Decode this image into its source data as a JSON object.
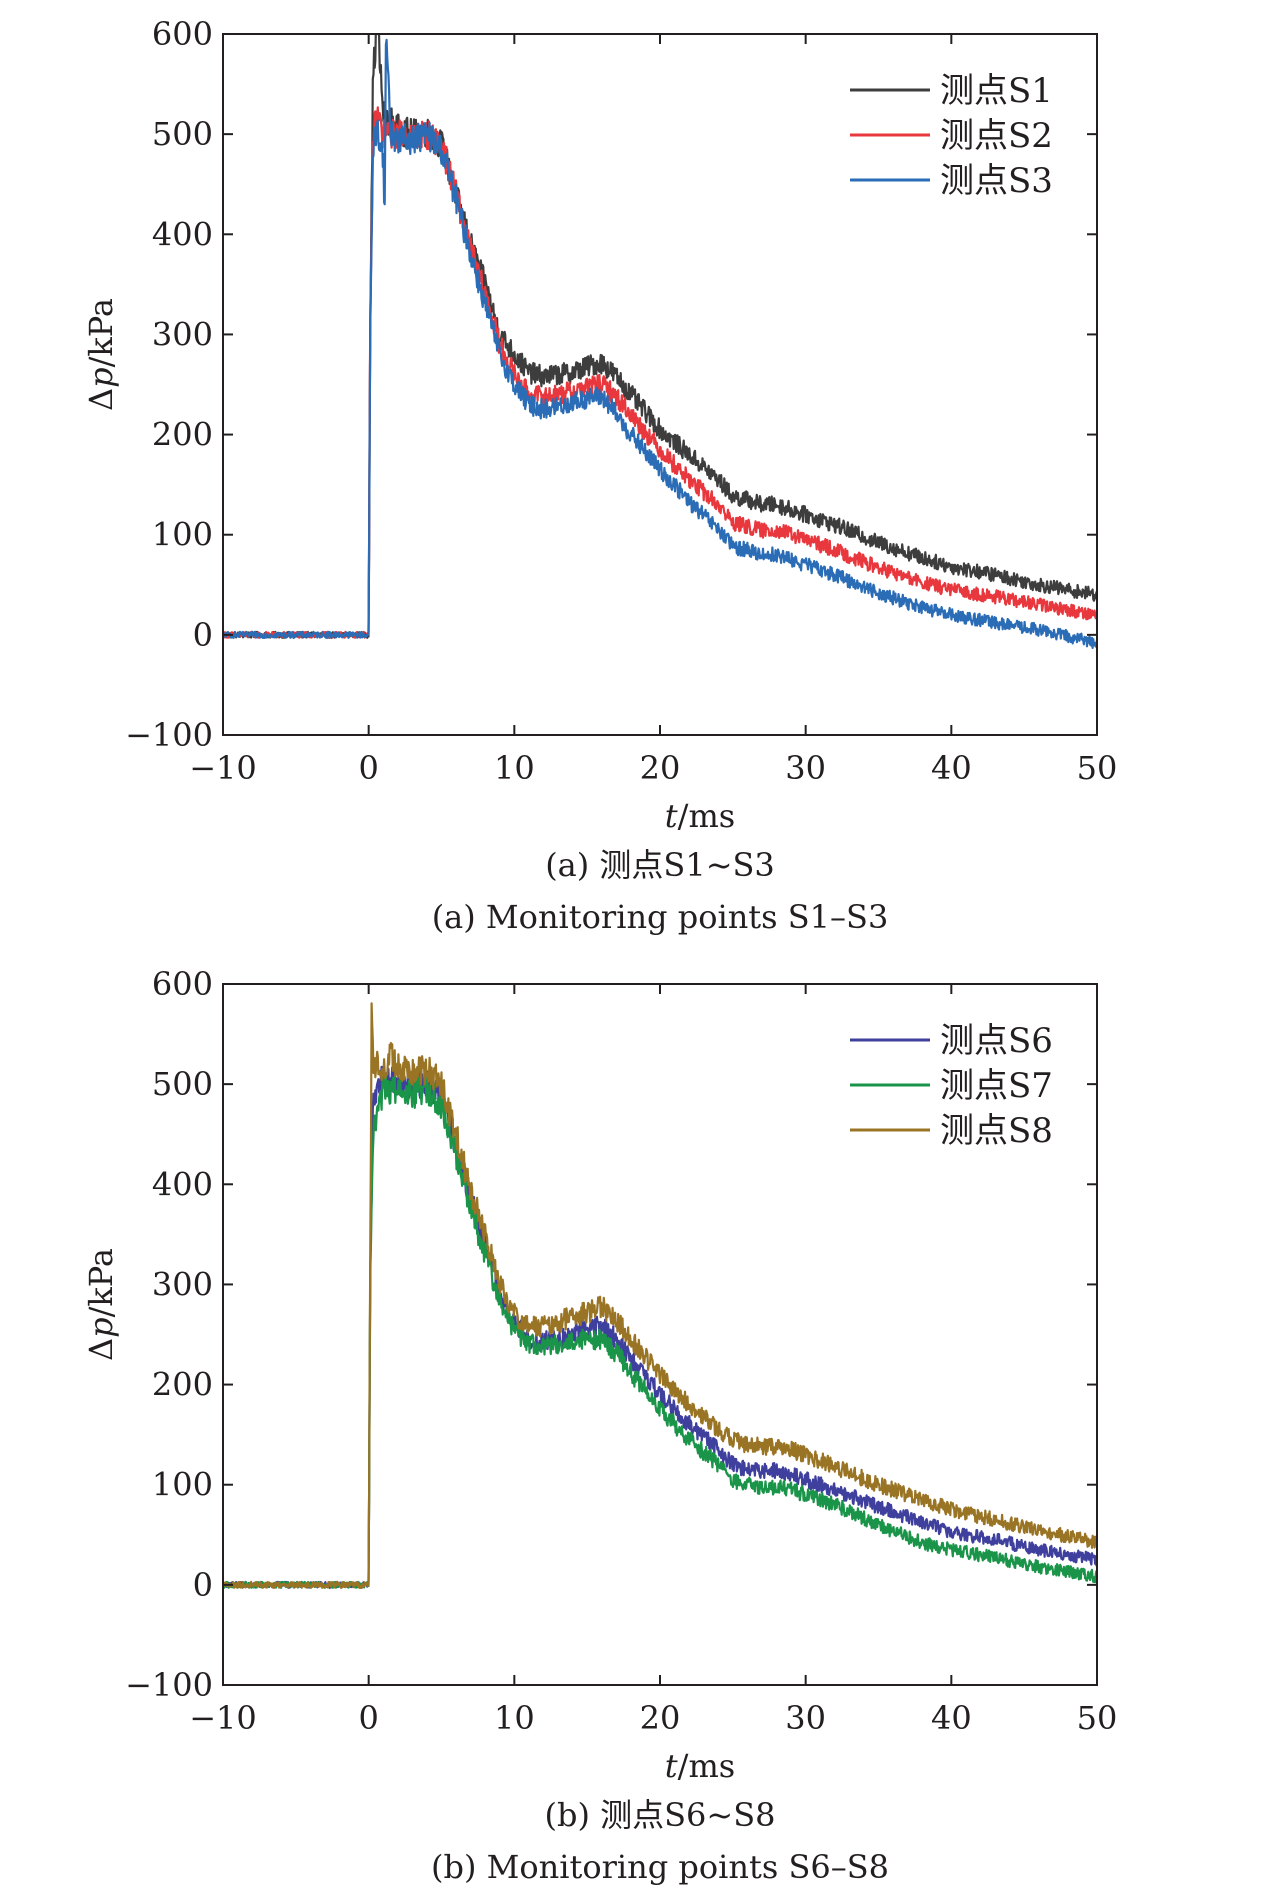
{
  "chart_data": [
    {
      "type": "line",
      "caption_cn": "(a) 测点S1~S3",
      "caption_en": "(a) Monitoring points S1–S3",
      "xlabel_var": "t",
      "xlabel_unit": "/ms",
      "ylabel_var": "Δp",
      "ylabel_unit": "/kPa",
      "xlim": [
        -10,
        50
      ],
      "ylim": [
        -100,
        600
      ],
      "xticks": [
        -10,
        0,
        10,
        20,
        30,
        40,
        50
      ],
      "yticks": [
        -100,
        0,
        100,
        200,
        300,
        400,
        500,
        600
      ],
      "xtick_labels": [
        "−10",
        "0",
        "10",
        "20",
        "30",
        "40",
        "50"
      ],
      "ytick_labels": [
        "−100",
        "0",
        "100",
        "200",
        "300",
        "400",
        "500",
        "600"
      ],
      "grid": false,
      "legend_position": "top-right",
      "series": [
        {
          "name": "测点S1",
          "color": "#3d3d3d",
          "x": [
            -10,
            -5,
            0,
            0.1,
            0.3,
            0.6,
            1,
            2,
            3,
            4,
            5,
            6,
            7,
            8,
            9,
            10,
            11,
            12,
            13,
            14,
            15,
            16,
            17,
            18,
            20,
            22,
            24,
            25,
            26,
            27,
            28,
            29,
            30,
            32,
            35,
            38,
            40,
            43,
            46,
            50
          ],
          "y": [
            0,
            0,
            0,
            300,
            560,
            610,
            520,
            505,
            500,
            502,
            490,
            440,
            390,
            350,
            300,
            280,
            262,
            258,
            260,
            262,
            268,
            272,
            258,
            240,
            205,
            180,
            155,
            138,
            135,
            130,
            130,
            125,
            120,
            110,
            92,
            77,
            68,
            60,
            50,
            40
          ]
        },
        {
          "name": "测点S2",
          "color": "#e8373d",
          "x": [
            -10,
            -5,
            0,
            0.1,
            0.3,
            0.6,
            1,
            2,
            3,
            4,
            5,
            6,
            7,
            8,
            9,
            10,
            11,
            12,
            13,
            14,
            15,
            16,
            17,
            18,
            20,
            22,
            24,
            25,
            26,
            27,
            28,
            29,
            30,
            32,
            35,
            38,
            40,
            43,
            46,
            50
          ],
          "y": [
            0,
            0,
            0,
            300,
            500,
            520,
            500,
            500,
            498,
            500,
            490,
            440,
            385,
            340,
            290,
            260,
            240,
            238,
            240,
            243,
            248,
            250,
            238,
            220,
            185,
            155,
            130,
            112,
            108,
            104,
            105,
            100,
            95,
            85,
            67,
            52,
            45,
            38,
            30,
            20
          ]
        },
        {
          "name": "测点S3",
          "color": "#2a6cb5",
          "x": [
            -10,
            -5,
            0,
            0.1,
            0.3,
            0.6,
            1,
            1.1,
            1.2,
            1.5,
            2,
            3,
            4,
            5,
            6,
            7,
            8,
            9,
            10,
            11,
            12,
            13,
            14,
            15,
            16,
            17,
            18,
            20,
            22,
            24,
            25,
            26,
            27,
            28,
            29,
            30,
            32,
            35,
            38,
            40,
            43,
            46,
            50
          ],
          "y": [
            0,
            0,
            0,
            300,
            490,
            505,
            480,
            420,
            610,
            500,
            495,
            495,
            500,
            485,
            435,
            380,
            330,
            280,
            250,
            230,
            225,
            228,
            232,
            236,
            238,
            220,
            200,
            165,
            133,
            105,
            88,
            85,
            80,
            80,
            75,
            70,
            60,
            42,
            27,
            20,
            12,
            5,
            -8
          ]
        }
      ]
    },
    {
      "type": "line",
      "caption_cn": "(b) 测点S6~S8",
      "caption_en": "(b) Monitoring points S6–S8",
      "xlabel_var": "t",
      "xlabel_unit": "/ms",
      "ylabel_var": "Δp",
      "ylabel_unit": "/kPa",
      "xlim": [
        -10,
        50
      ],
      "ylim": [
        -100,
        600
      ],
      "xticks": [
        -10,
        0,
        10,
        20,
        30,
        40,
        50
      ],
      "yticks": [
        -100,
        0,
        100,
        200,
        300,
        400,
        500,
        600
      ],
      "xtick_labels": [
        "−10",
        "0",
        "10",
        "20",
        "30",
        "40",
        "50"
      ],
      "ytick_labels": [
        "−100",
        "0",
        "100",
        "200",
        "300",
        "400",
        "500",
        "600"
      ],
      "grid": false,
      "legend_position": "top-right",
      "series": [
        {
          "name": "测点S6",
          "color": "#3f3f9e",
          "x": [
            -10,
            -5,
            0,
            0.1,
            0.3,
            1,
            2,
            3,
            4,
            5,
            6,
            7,
            8,
            9,
            10,
            11,
            12,
            13,
            14,
            15,
            16,
            17,
            18,
            20,
            22,
            24,
            25,
            26,
            27,
            28,
            29,
            30,
            32,
            35,
            38,
            40,
            43,
            46,
            50
          ],
          "y": [
            0,
            0,
            0,
            300,
            490,
            505,
            500,
            498,
            500,
            490,
            440,
            385,
            340,
            290,
            260,
            245,
            243,
            245,
            250,
            255,
            258,
            245,
            225,
            190,
            160,
            135,
            120,
            115,
            113,
            115,
            110,
            105,
            95,
            78,
            62,
            53,
            45,
            35,
            25
          ]
        },
        {
          "name": "测点S7",
          "color": "#1a9448",
          "x": [
            -10,
            -5,
            0,
            0.1,
            0.3,
            1,
            2,
            3,
            4,
            5,
            6,
            7,
            8,
            9,
            10,
            11,
            12,
            13,
            14,
            15,
            16,
            17,
            18,
            20,
            22,
            24,
            25,
            26,
            27,
            28,
            29,
            30,
            32,
            35,
            38,
            40,
            43,
            46,
            50
          ],
          "y": [
            0,
            0,
            0,
            300,
            450,
            495,
            495,
            490,
            495,
            480,
            430,
            375,
            330,
            280,
            255,
            240,
            238,
            240,
            243,
            245,
            245,
            232,
            212,
            175,
            145,
            120,
            105,
            100,
            97,
            98,
            95,
            90,
            80,
            60,
            42,
            35,
            27,
            18,
            8
          ]
        },
        {
          "name": "测点S8",
          "color": "#9a7425",
          "x": [
            -10,
            -5,
            0,
            0.1,
            0.2,
            0.3,
            1,
            1.5,
            2,
            3,
            4,
            5,
            6,
            7,
            8,
            9,
            10,
            11,
            12,
            13,
            14,
            15,
            16,
            17,
            18,
            20,
            22,
            24,
            25,
            26,
            27,
            28,
            29,
            30,
            32,
            35,
            38,
            40,
            43,
            46,
            50
          ],
          "y": [
            0,
            0,
            0,
            300,
            580,
            520,
            515,
            530,
            520,
            510,
            515,
            500,
            450,
            395,
            350,
            300,
            270,
            258,
            258,
            262,
            268,
            272,
            278,
            265,
            245,
            210,
            180,
            155,
            145,
            140,
            138,
            138,
            135,
            130,
            118,
            100,
            85,
            75,
            65,
            55,
            42
          ]
        }
      ]
    }
  ]
}
